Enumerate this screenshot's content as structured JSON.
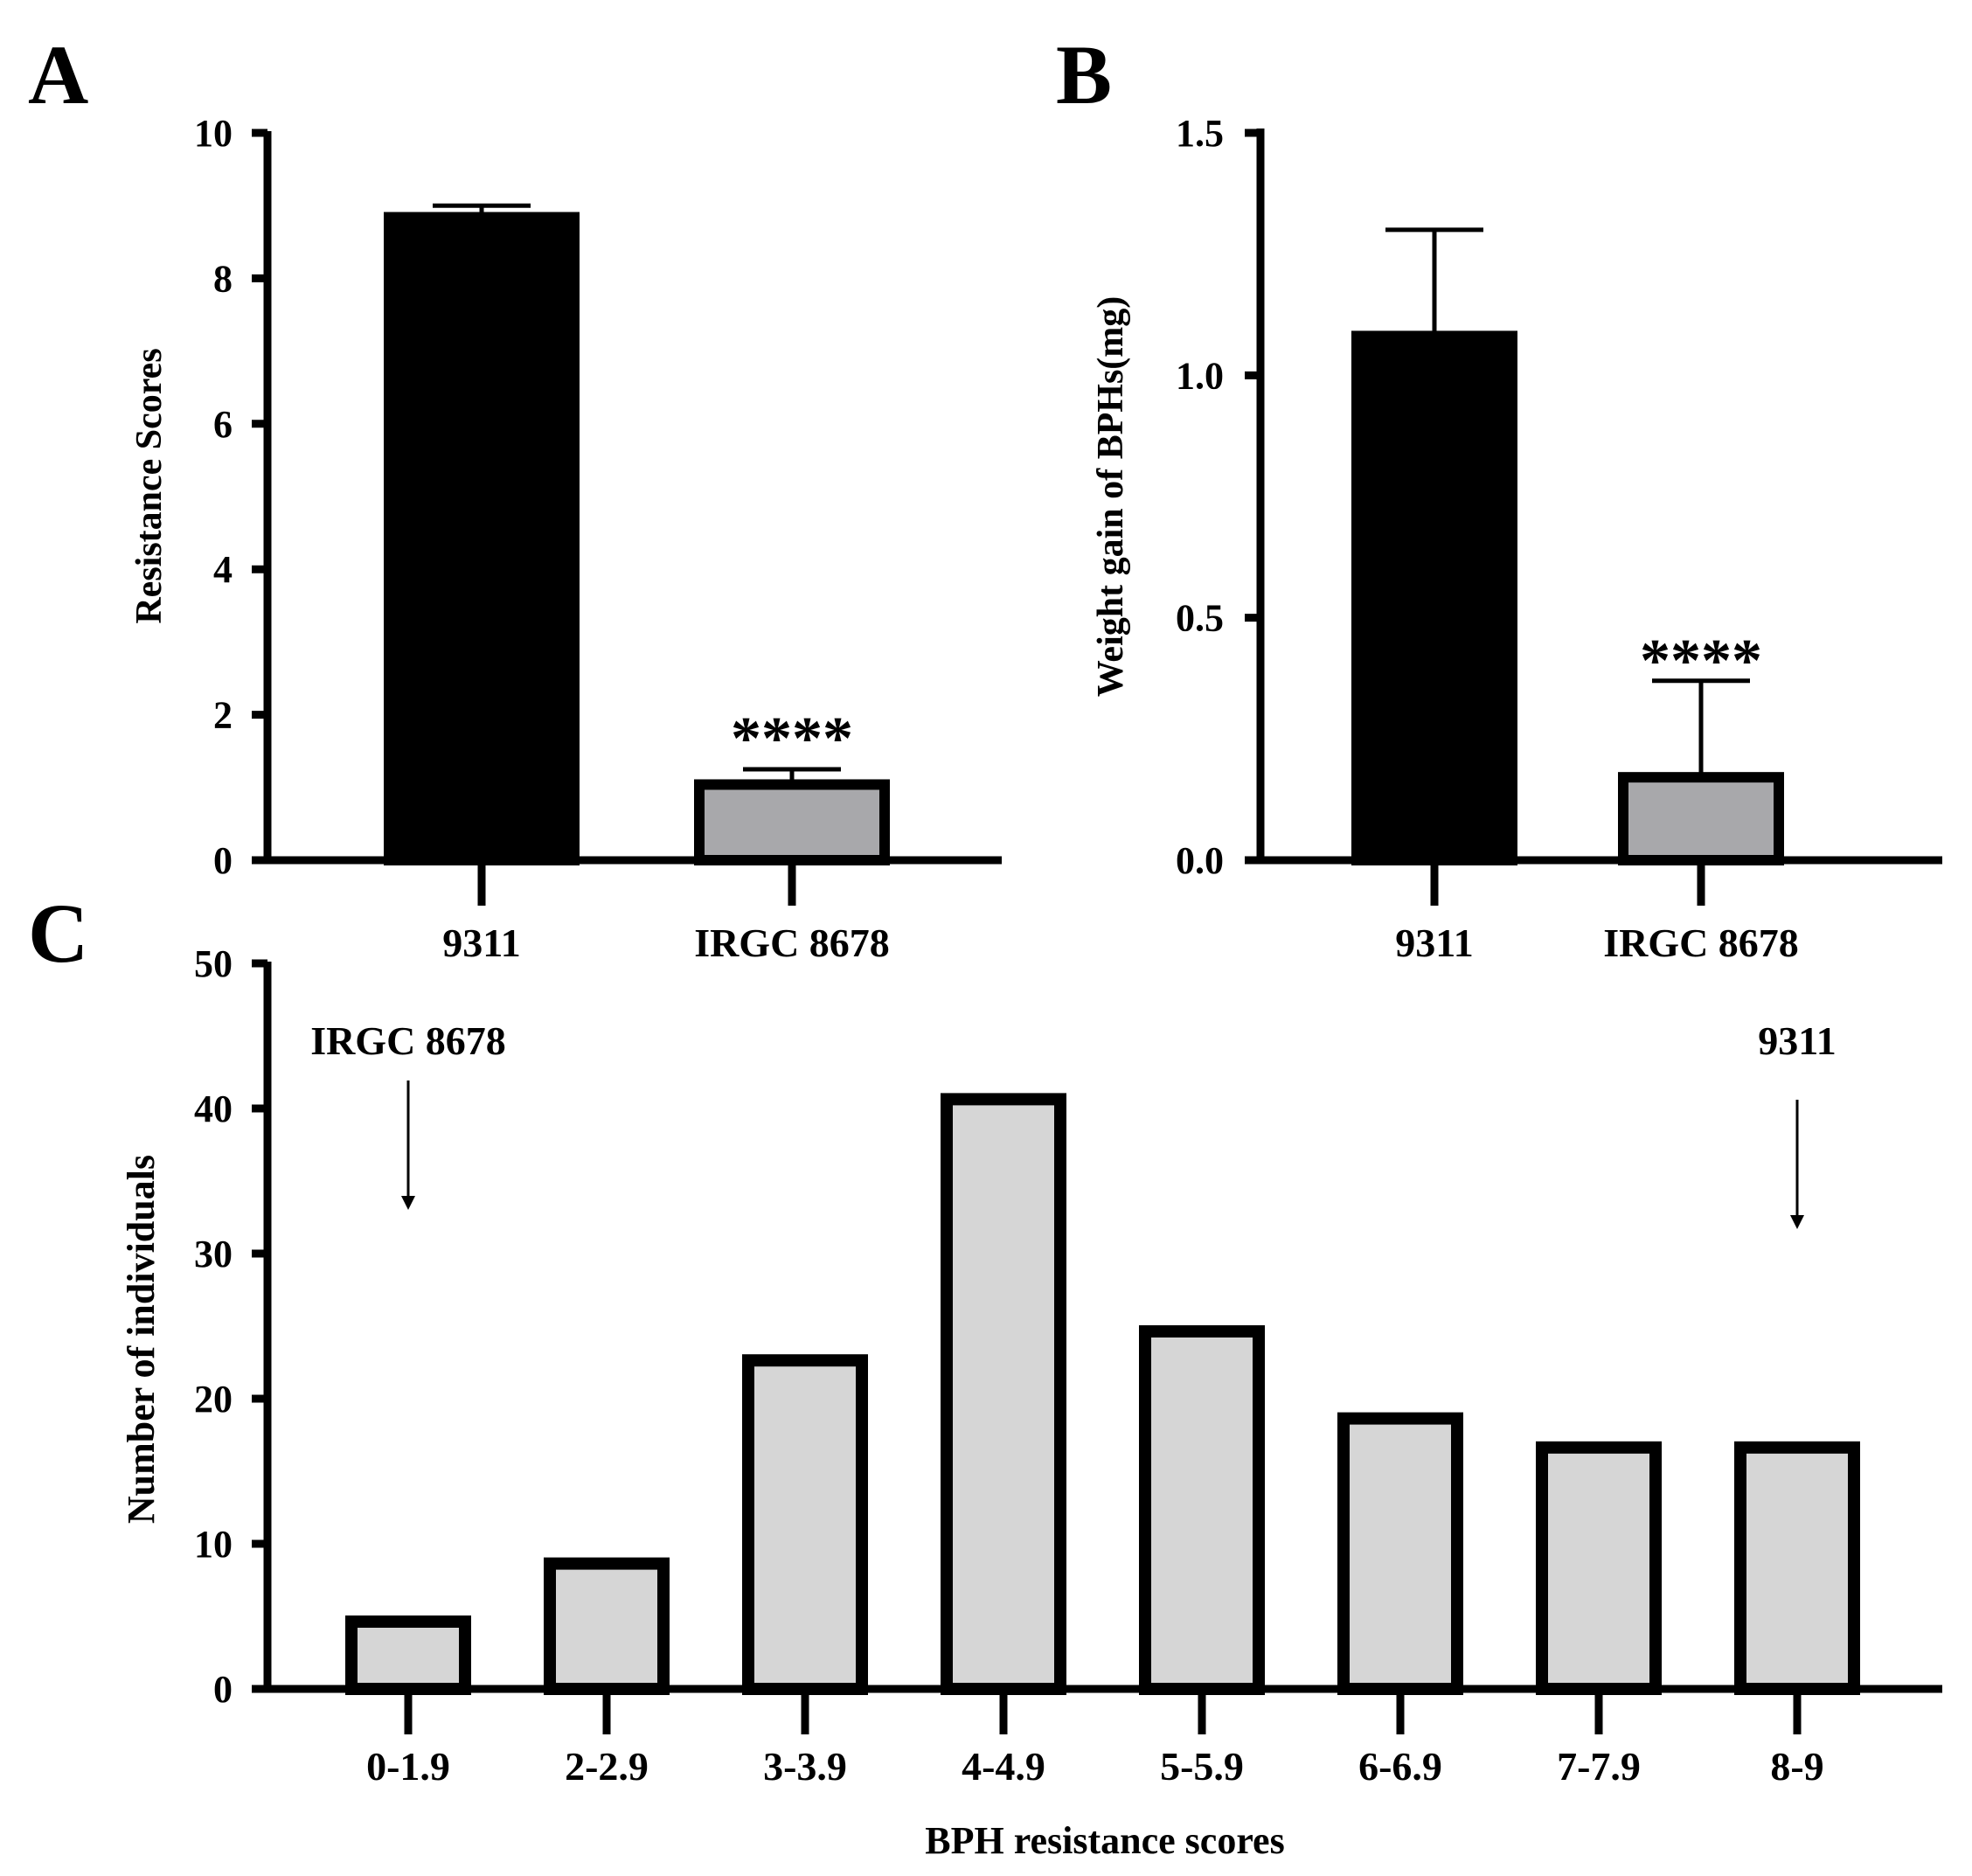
{
  "figure": {
    "panel_labels": [
      "A",
      "B",
      "C"
    ]
  },
  "chart_data": [
    {
      "panel": "A",
      "type": "bar",
      "categories": [
        "9311",
        "IRGC 8678"
      ],
      "values": [
        8.9,
        1.1
      ],
      "errors": [
        0.1,
        0.15
      ],
      "fills": [
        "#000000",
        "#a8a8ab"
      ],
      "significance": [
        "",
        "****"
      ],
      "xlabel": "",
      "ylabel": "Resistance Scores",
      "ylim": [
        0,
        10
      ],
      "yticks": [
        "0",
        "2",
        "4",
        "6",
        "8",
        "10"
      ]
    },
    {
      "panel": "B",
      "type": "bar",
      "categories": [
        "9311",
        "IRGC 8678"
      ],
      "values": [
        1.09,
        0.18
      ],
      "errors": [
        0.21,
        0.19
      ],
      "fills": [
        "#000000",
        "#a8a8ab"
      ],
      "significance": [
        "",
        "****"
      ],
      "xlabel": "",
      "ylabel": "Weight gain of BPHs(mg)",
      "ylim": [
        0,
        1.5
      ],
      "yticks": [
        "0.0",
        "0.5",
        "1.0",
        "1.5"
      ]
    },
    {
      "panel": "C",
      "type": "bar",
      "categories": [
        "0-1.9",
        "2-2.9",
        "3-3.9",
        "4-4.9",
        "5-5.9",
        "6-6.9",
        "7-7.9",
        "8-9"
      ],
      "values": [
        5,
        9,
        23,
        41,
        25,
        19,
        17,
        17
      ],
      "fill": "#d6d6d6",
      "xlabel": "BPH resistance scores",
      "ylabel": "Number of individuals",
      "ylim": [
        0,
        50
      ],
      "yticks": [
        "0",
        "10",
        "20",
        "30",
        "40",
        "50"
      ],
      "annotations": [
        {
          "text": "IRGC 8678",
          "category_index": 0
        },
        {
          "text": "9311",
          "category_index": 7
        }
      ]
    }
  ]
}
